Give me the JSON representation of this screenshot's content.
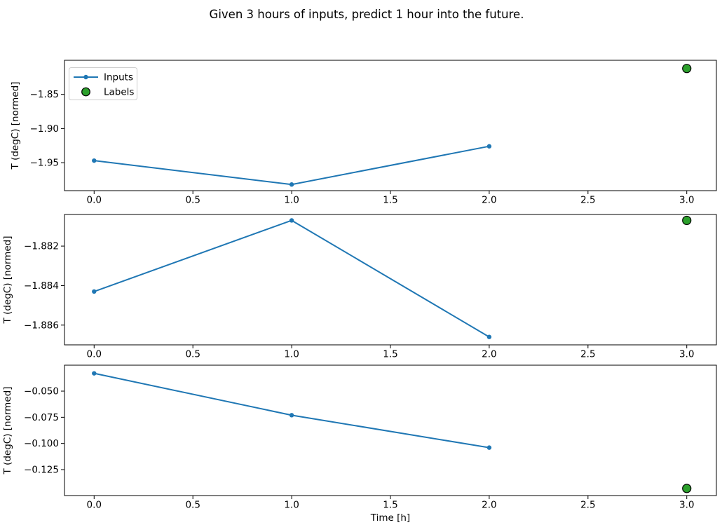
{
  "figure": {
    "title": "Given 3 hours of inputs, predict 1 hour into the future.",
    "background": "#ffffff"
  },
  "colors": {
    "inputs": "#1f77b4",
    "labels_fill": "#2ca02c",
    "labels_edge": "#000000",
    "spine": "#000000",
    "legend_border": "#cccccc",
    "text": "#000000"
  },
  "legend": {
    "items": [
      {
        "label": "Inputs",
        "marker": "line-dot",
        "color": "#1f77b4"
      },
      {
        "label": "Labels",
        "marker": "circle",
        "color": "#2ca02c",
        "edge": "#000000"
      }
    ]
  },
  "chart_data": [
    {
      "type": "line",
      "title": "",
      "xlabel": "",
      "ylabel": "T (degC) [normed]",
      "xlim": [
        -0.15,
        3.15
      ],
      "ylim": [
        -1.991,
        -1.8
      ],
      "x_ticks": [
        0.0,
        0.5,
        1.0,
        1.5,
        2.0,
        2.5,
        3.0
      ],
      "x_tick_labels": [
        "0.0",
        "0.5",
        "1.0",
        "1.5",
        "2.0",
        "2.5",
        "3.0"
      ],
      "y_ticks": [
        -1.85,
        -1.9,
        -1.95
      ],
      "y_tick_labels": [
        "−1.85",
        "−1.90",
        "−1.95"
      ],
      "legend": true,
      "series": [
        {
          "name": "Inputs",
          "style": "line-marker",
          "x": [
            0,
            1,
            2
          ],
          "y": [
            -1.947,
            -1.982,
            -1.926
          ]
        },
        {
          "name": "Labels",
          "style": "scatter",
          "x": [
            3
          ],
          "y": [
            -1.812
          ]
        }
      ]
    },
    {
      "type": "line",
      "title": "",
      "xlabel": "",
      "ylabel": "T (degC) [normed]",
      "xlim": [
        -0.15,
        3.15
      ],
      "ylim": [
        -1.887,
        -1.8804
      ],
      "x_ticks": [
        0.0,
        0.5,
        1.0,
        1.5,
        2.0,
        2.5,
        3.0
      ],
      "x_tick_labels": [
        "0.0",
        "0.5",
        "1.0",
        "1.5",
        "2.0",
        "2.5",
        "3.0"
      ],
      "y_ticks": [
        -1.882,
        -1.884,
        -1.886
      ],
      "y_tick_labels": [
        "−1.882",
        "−1.884",
        "−1.886"
      ],
      "legend": false,
      "series": [
        {
          "name": "Inputs",
          "style": "line-marker",
          "x": [
            0,
            1,
            2
          ],
          "y": [
            -1.8843,
            -1.8807,
            -1.8866
          ]
        },
        {
          "name": "Labels",
          "style": "scatter",
          "x": [
            3
          ],
          "y": [
            -1.8807
          ]
        }
      ]
    },
    {
      "type": "line",
      "title": "",
      "xlabel": "Time [h]",
      "ylabel": "T (degC) [normed]",
      "xlim": [
        -0.15,
        3.15
      ],
      "ylim": [
        -0.1498,
        -0.0252
      ],
      "x_ticks": [
        0.0,
        0.5,
        1.0,
        1.5,
        2.0,
        2.5,
        3.0
      ],
      "x_tick_labels": [
        "0.0",
        "0.5",
        "1.0",
        "1.5",
        "2.0",
        "2.5",
        "3.0"
      ],
      "y_ticks": [
        -0.05,
        -0.075,
        -0.1,
        -0.125
      ],
      "y_tick_labels": [
        "−0.050",
        "−0.075",
        "−0.100",
        "−0.125"
      ],
      "legend": false,
      "series": [
        {
          "name": "Inputs",
          "style": "line-marker",
          "x": [
            0,
            1,
            2
          ],
          "y": [
            -0.033,
            -0.073,
            -0.104
          ]
        },
        {
          "name": "Labels",
          "style": "scatter",
          "x": [
            3
          ],
          "y": [
            -0.143
          ]
        }
      ]
    }
  ]
}
